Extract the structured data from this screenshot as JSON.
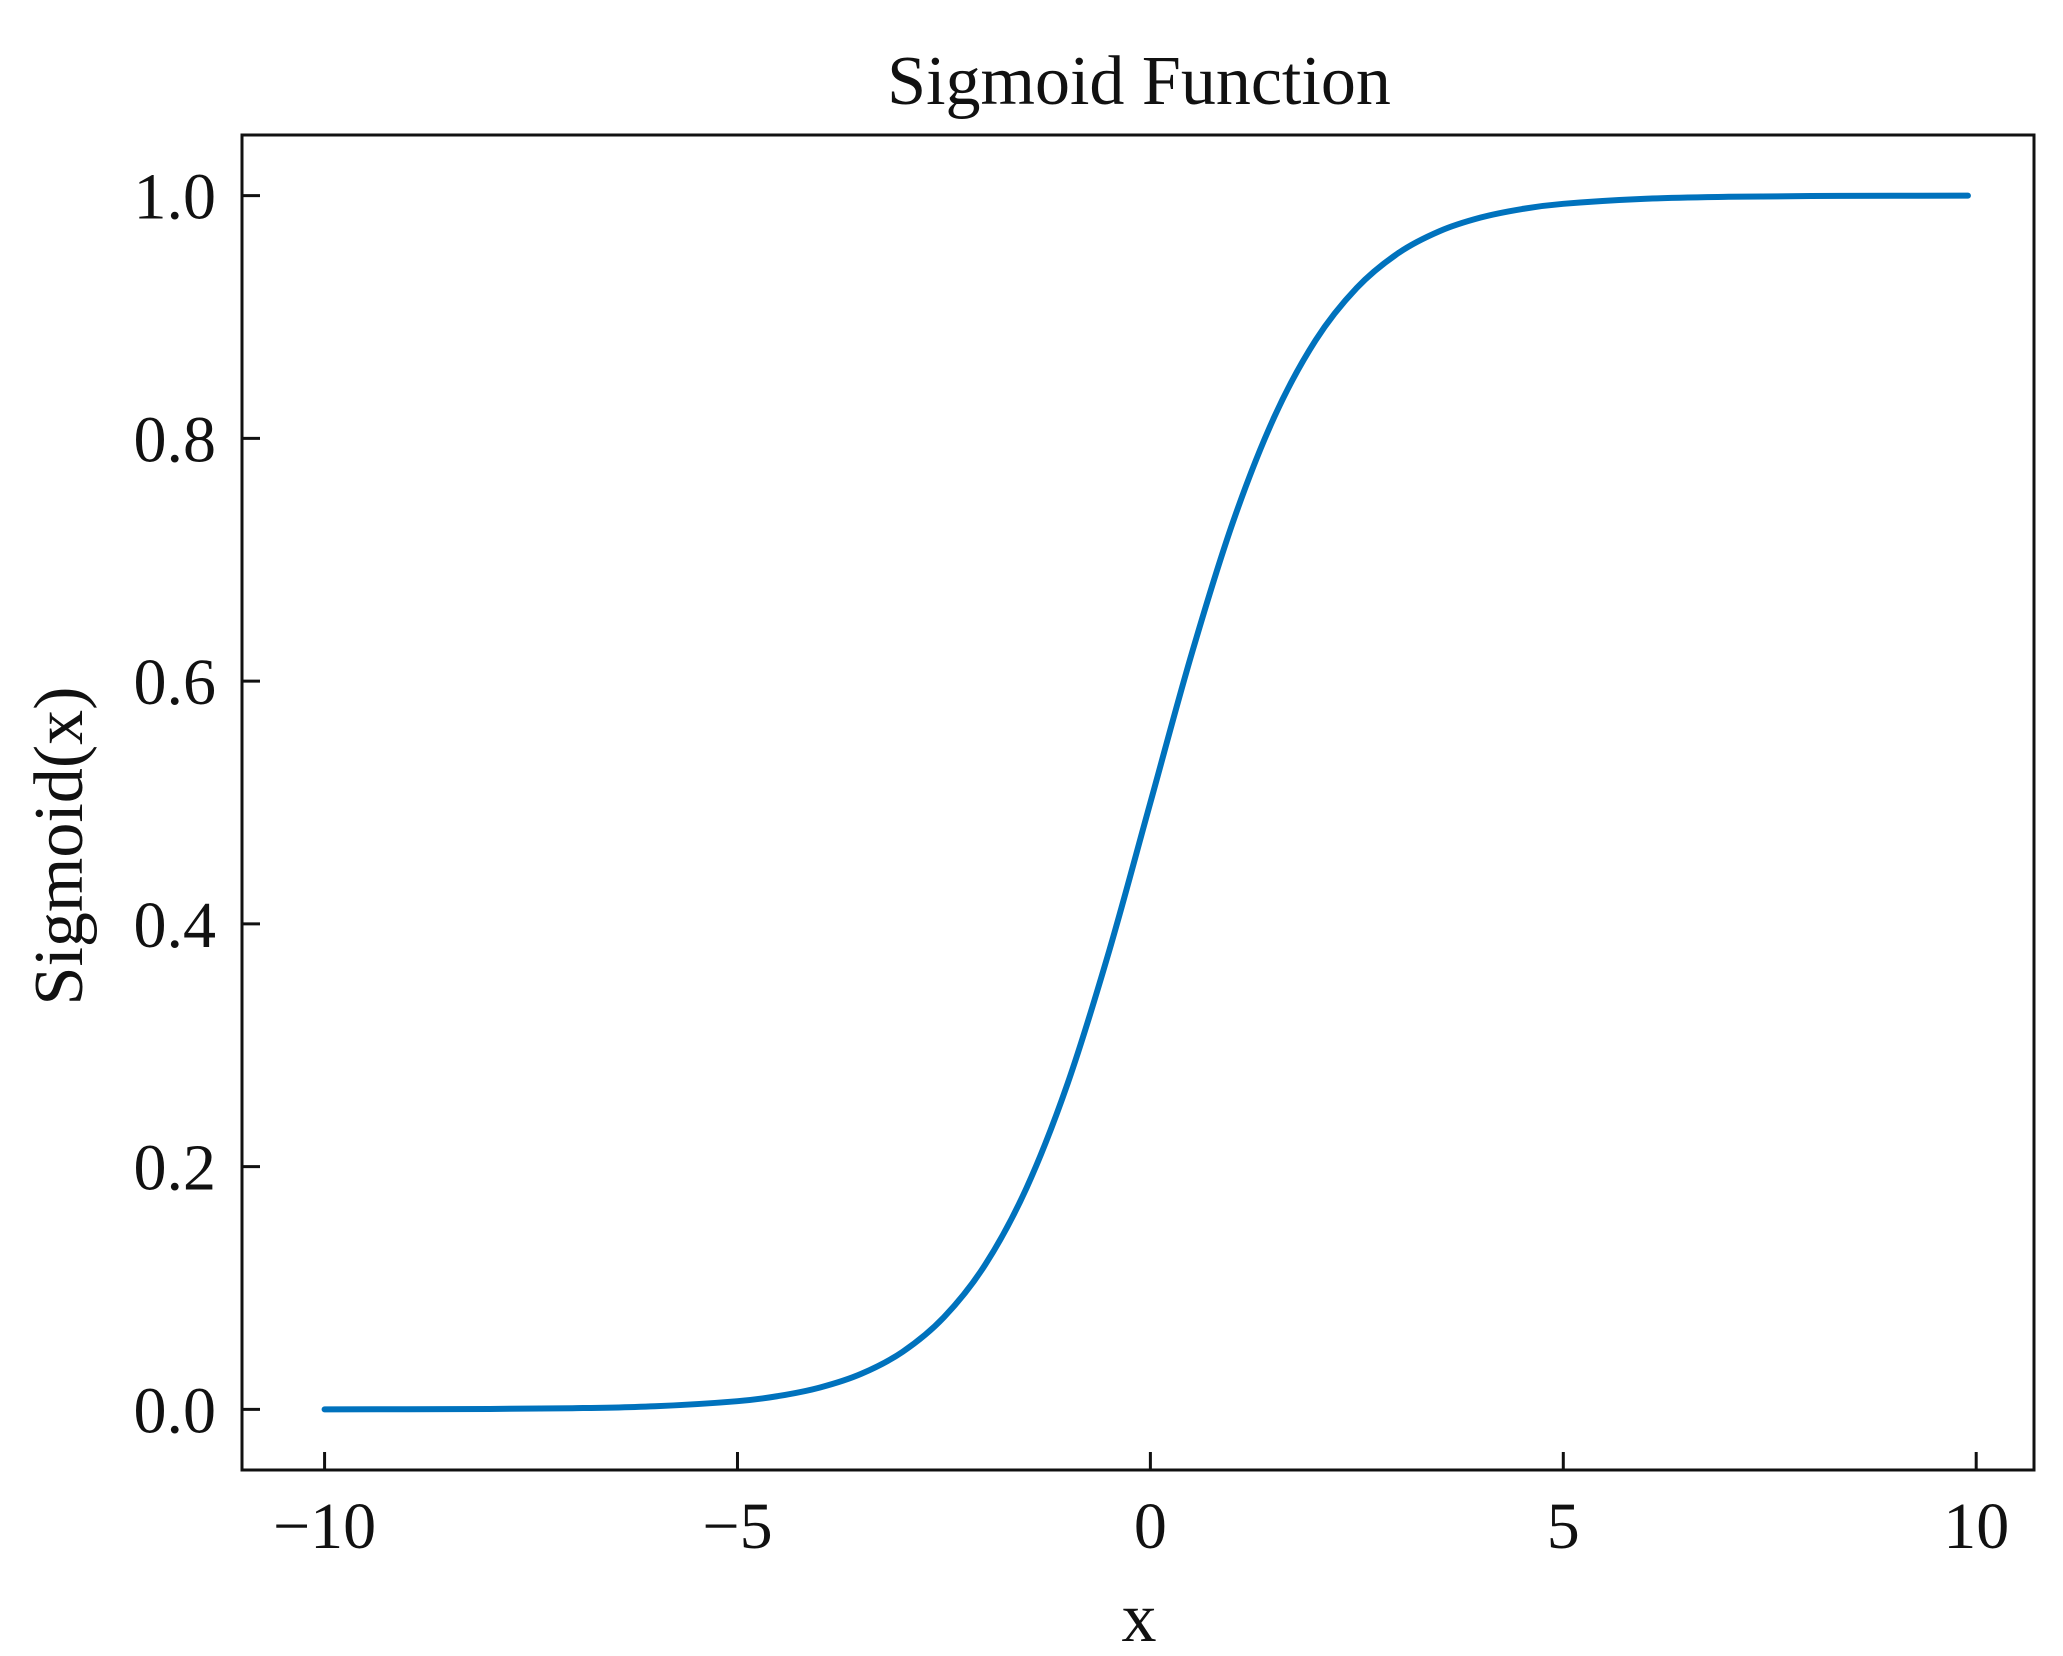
{
  "chart_data": {
    "type": "line",
    "title": "Sigmoid Function",
    "xlabel": "x",
    "ylabel": "Sigmoid(x)",
    "xlim": [
      -11,
      10.7
    ],
    "ylim": [
      -0.05,
      1.05
    ],
    "x_ticks": [
      -10,
      -5,
      0,
      5,
      10
    ],
    "x_tick_labels": [
      "−10",
      "−5",
      "0",
      "5",
      "10"
    ],
    "y_ticks": [
      0.0,
      0.2,
      0.4,
      0.6,
      0.8,
      1.0
    ],
    "y_tick_labels": [
      "0.0",
      "0.2",
      "0.4",
      "0.6",
      "0.8",
      "1.0"
    ],
    "grid": false,
    "tick_direction": "in",
    "series": [
      {
        "color": "#0072bd",
        "x": [
          -10,
          -9,
          -8,
          -7,
          -6,
          -5,
          -4.5,
          -4,
          -3.5,
          -3,
          -2.5,
          -2,
          -1.5,
          -1,
          -0.5,
          0,
          0.5,
          1,
          1.5,
          2,
          2.5,
          3,
          3.5,
          4,
          4.5,
          5,
          6,
          7,
          8,
          9,
          9.9
        ],
        "y": [
          0.0,
          0.0001,
          0.0003,
          0.0009,
          0.0025,
          0.0067,
          0.011,
          0.018,
          0.0293,
          0.0474,
          0.0759,
          0.1192,
          0.1824,
          0.2689,
          0.3775,
          0.5,
          0.6225,
          0.7311,
          0.8176,
          0.8808,
          0.9241,
          0.9526,
          0.9707,
          0.982,
          0.989,
          0.9933,
          0.9975,
          0.9991,
          0.9997,
          0.9999,
          1.0
        ]
      }
    ]
  }
}
